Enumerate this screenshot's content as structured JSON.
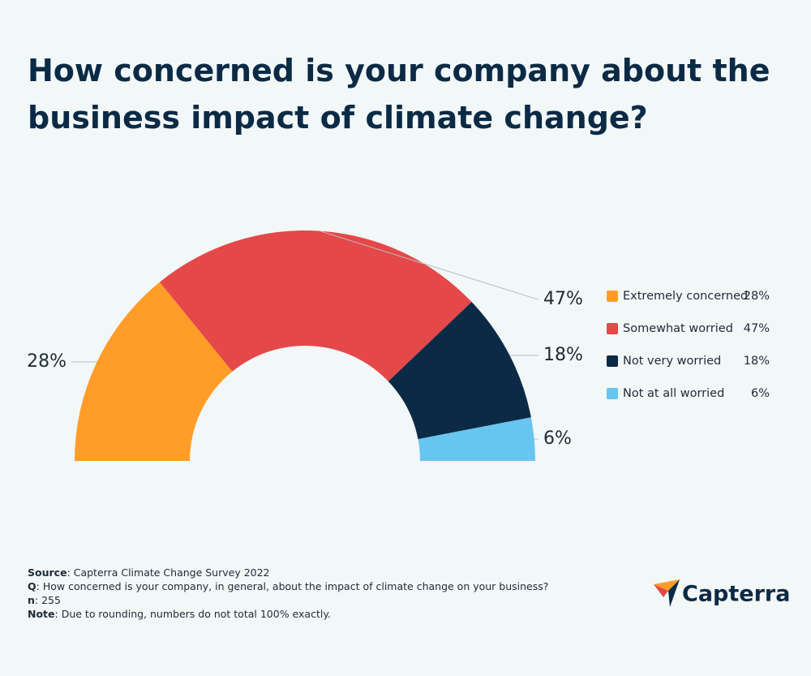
{
  "chart_data": {
    "type": "semi-donut",
    "title": "How concerned is your company about the business impact of climate change?",
    "categories": [
      "Extremely concerned",
      "Somewhat worried",
      "Not very worried",
      "Not at all worried"
    ],
    "values": [
      28,
      47,
      18,
      6
    ],
    "value_labels": [
      "28%",
      "47%",
      "18%",
      "6%"
    ],
    "colors": [
      "#ff9d28",
      "#e54848",
      "#0b2a45",
      "#68c5ef"
    ],
    "legend": "right",
    "notes": [
      {
        "label": "Source",
        "text": ": Capterra Climate Change Survey 2022"
      },
      {
        "label": "Q",
        "text": ": How concerned is your company, in general, about the impact of climate change on your business?"
      },
      {
        "label": "n",
        "text": ": 255"
      },
      {
        "label": "Note",
        "text": ": Due to rounding, numbers do not total 100% exactly."
      }
    ],
    "brand": "Capterra"
  }
}
